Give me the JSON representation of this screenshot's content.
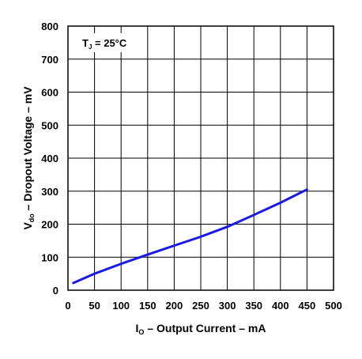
{
  "chart_data": {
    "type": "line",
    "title": "",
    "xlabel": {
      "main": "I",
      "sub": "O",
      "rest": " – Output Current – mA"
    },
    "ylabel": {
      "main": "V",
      "sub": "do",
      "rest": " – Dropout Voltage – mV"
    },
    "xlim": [
      0,
      500
    ],
    "ylim": [
      0,
      800
    ],
    "x_ticks": [
      "0",
      "50",
      "100",
      "150",
      "200",
      "250",
      "300",
      "350",
      "400",
      "450",
      "500"
    ],
    "y_ticks": [
      "0",
      "100",
      "200",
      "300",
      "400",
      "500",
      "600",
      "700",
      "800"
    ],
    "grid": true,
    "annotation": {
      "main": "T",
      "sub": "J",
      "rest": " = 25°C"
    },
    "series": [
      {
        "color": "#1a1ae6",
        "x": [
          10,
          50,
          100,
          150,
          200,
          250,
          300,
          350,
          400,
          450
        ],
        "y": [
          22,
          50,
          80,
          108,
          135,
          162,
          192,
          228,
          265,
          305
        ]
      }
    ]
  }
}
